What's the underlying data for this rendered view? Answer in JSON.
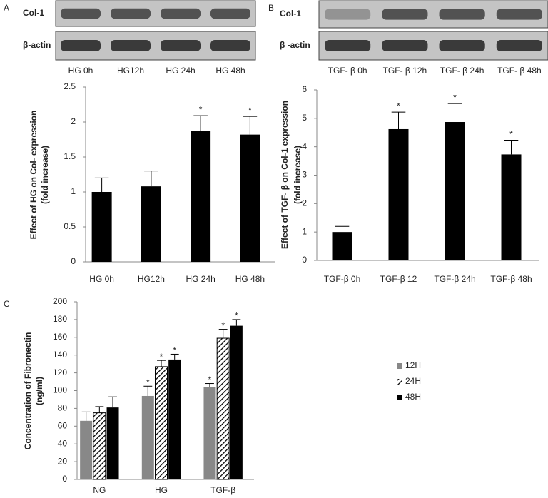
{
  "chart_data": [
    {
      "type": "bar",
      "panel": "A",
      "blot": {
        "rows": [
          "Col-1",
          "β-actin"
        ],
        "lanes": [
          "HG 0h",
          "HG12h",
          "HG 24h",
          "HG 48h"
        ]
      },
      "ylabel": [
        "Effect of HG on Col- expression",
        "(fold increase)"
      ],
      "categories": [
        "HG 0h",
        "HG12h",
        "HG 24h",
        "HG 48h"
      ],
      "values": [
        1.0,
        1.08,
        1.87,
        1.82
      ],
      "errors": [
        0.2,
        0.22,
        0.22,
        0.26
      ],
      "markers": [
        null,
        null,
        "*",
        "*"
      ],
      "color": "#000000",
      "ylim": [
        0,
        2.5
      ],
      "yticks": [
        0,
        0.5,
        1,
        1.5,
        2,
        2.5
      ]
    },
    {
      "type": "bar",
      "panel": "B",
      "blot": {
        "rows": [
          "Col-1",
          "β -actin"
        ],
        "lanes": [
          "TGF- β 0h",
          "TGF- β 12h",
          "TGF- β 24h",
          "TGF- β 48h"
        ]
      },
      "ylabel": [
        "Effect of TGF- β on Col-1 expression",
        "(fold increase)"
      ],
      "categories": [
        "TGF-β 0h",
        "TGF-β 12",
        "TGF-β 24h",
        "TGF-β 48h"
      ],
      "values": [
        1.0,
        4.62,
        4.87,
        3.73
      ],
      "errors": [
        0.2,
        0.6,
        0.65,
        0.5
      ],
      "markers": [
        null,
        "*",
        "*",
        "*"
      ],
      "color": "#000000",
      "ylim": [
        0,
        6
      ],
      "yticks": [
        0,
        1,
        2,
        3,
        4,
        5,
        6
      ]
    },
    {
      "type": "grouped_bar",
      "panel": "C",
      "ylabel": [
        "Concentration of Fibronectin",
        "(ng/ml)"
      ],
      "categories": [
        "NG",
        "HG",
        "TGF-β"
      ],
      "series": [
        {
          "name": "12H",
          "color": "#888888",
          "values": [
            66,
            94,
            104
          ],
          "errors": [
            10,
            11,
            4
          ],
          "markers": [
            null,
            "*",
            "*"
          ]
        },
        {
          "name": "24H",
          "color": "#000000",
          "hatch": true,
          "values": [
            75,
            127,
            159
          ],
          "errors": [
            7,
            7,
            10
          ],
          "markers": [
            null,
            "*",
            "*"
          ]
        },
        {
          "name": "48H",
          "color": "#000000",
          "values": [
            81,
            135,
            173
          ],
          "errors": [
            12,
            6,
            7
          ],
          "markers": [
            null,
            "*",
            "*"
          ]
        }
      ],
      "legend": "right",
      "ylim": [
        0,
        200
      ],
      "yticks": [
        0,
        20,
        40,
        60,
        80,
        100,
        120,
        140,
        160,
        180,
        200
      ]
    }
  ]
}
